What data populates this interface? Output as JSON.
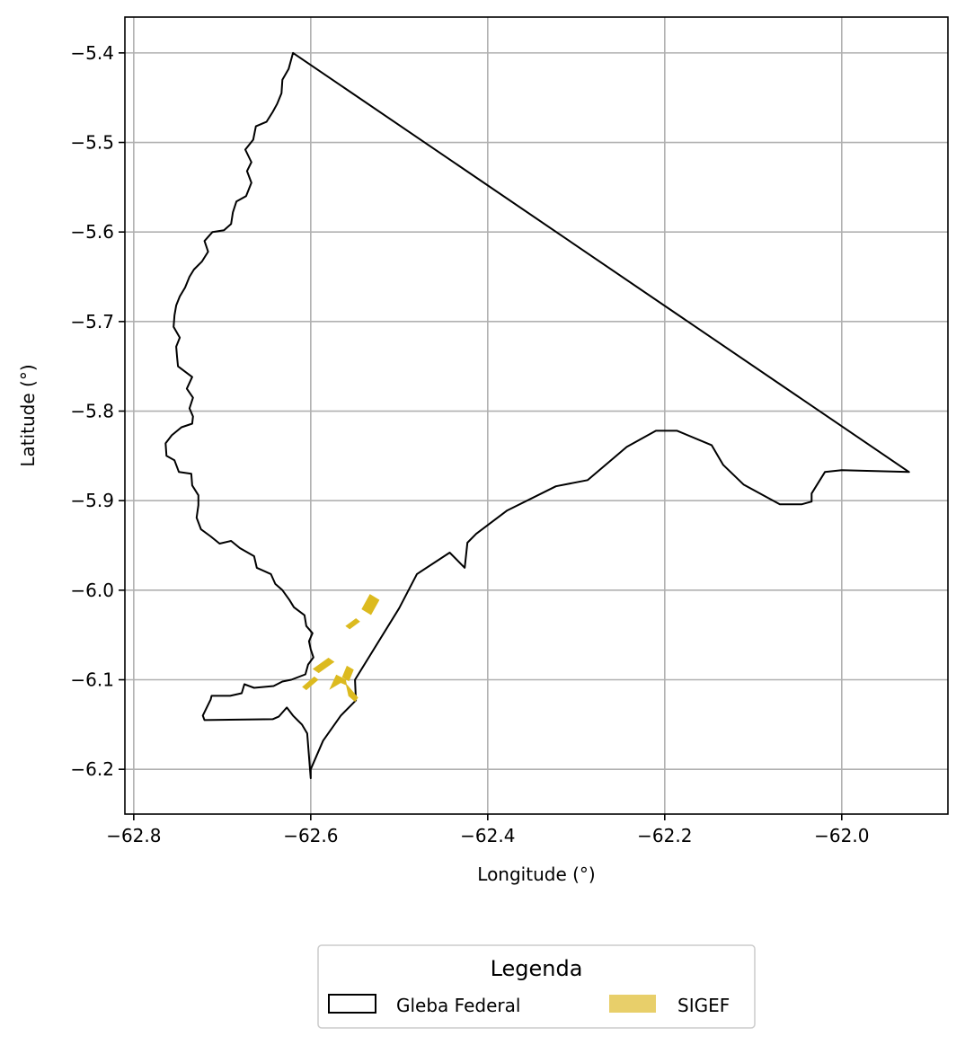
{
  "chart_data": {
    "type": "map",
    "xlabel": "Longitude (°)",
    "ylabel": "Latitude (°)",
    "xlim": [
      -62.81,
      -61.88
    ],
    "ylim": [
      -6.25,
      -5.36
    ],
    "xticks": [
      -62.8,
      -62.6,
      -62.4,
      -62.2,
      -62.0
    ],
    "xtick_labels": [
      "−62.8",
      "−62.6",
      "−62.4",
      "−62.2",
      "−62.0"
    ],
    "yticks": [
      -5.4,
      -5.5,
      -5.6,
      -5.7,
      -5.8,
      -5.9,
      -6.0,
      -6.1,
      -6.2
    ],
    "ytick_labels": [
      "−5.4",
      "−5.5",
      "−5.6",
      "−5.7",
      "−5.8",
      "−5.9",
      "−6.0",
      "−6.1",
      "−6.2"
    ],
    "grid": true,
    "legend": {
      "title": "Legenda",
      "placement": "bottom-center",
      "entries": [
        {
          "label": "Gleba Federal",
          "style": "outline",
          "color": "#000000"
        },
        {
          "label": "SIGEF",
          "style": "fill",
          "color": "#e8cf6a"
        }
      ]
    },
    "series": [
      {
        "name": "Gleba Federal",
        "kind": "polygon-outline",
        "color": "#000000",
        "coordinates": [
          [
            -62.62,
            -5.4
          ],
          [
            -61.924,
            -5.868
          ],
          [
            -62.0,
            -5.866
          ],
          [
            -62.019,
            -5.868
          ],
          [
            -62.034,
            -5.892
          ],
          [
            -62.034,
            -5.901
          ],
          [
            -62.045,
            -5.904
          ],
          [
            -62.07,
            -5.904
          ],
          [
            -62.111,
            -5.882
          ],
          [
            -62.134,
            -5.86
          ],
          [
            -62.147,
            -5.838
          ],
          [
            -62.186,
            -5.822
          ],
          [
            -62.21,
            -5.822
          ],
          [
            -62.243,
            -5.84
          ],
          [
            -62.287,
            -5.877
          ],
          [
            -62.323,
            -5.884
          ],
          [
            -62.378,
            -5.911
          ],
          [
            -62.413,
            -5.937
          ],
          [
            -62.423,
            -5.947
          ],
          [
            -62.426,
            -5.975
          ],
          [
            -62.443,
            -5.958
          ],
          [
            -62.48,
            -5.982
          ],
          [
            -62.5,
            -6.02
          ],
          [
            -62.55,
            -6.1
          ],
          [
            -62.549,
            -6.123
          ],
          [
            -62.566,
            -6.14
          ],
          [
            -62.586,
            -6.168
          ],
          [
            -62.6,
            -6.2
          ],
          [
            -62.6,
            -6.21
          ],
          [
            -62.604,
            -6.16
          ],
          [
            -62.61,
            -6.15
          ],
          [
            -62.614,
            -6.146
          ],
          [
            -62.62,
            -6.14
          ],
          [
            -62.627,
            -6.131
          ],
          [
            -62.636,
            -6.141
          ],
          [
            -62.643,
            -6.144
          ],
          [
            -62.72,
            -6.145
          ],
          [
            -62.722,
            -6.14
          ],
          [
            -62.713,
            -6.122
          ],
          [
            -62.712,
            -6.118
          ],
          [
            -62.691,
            -6.118
          ],
          [
            -62.678,
            -6.115
          ],
          [
            -62.675,
            -6.105
          ],
          [
            -62.664,
            -6.109
          ],
          [
            -62.642,
            -6.107
          ],
          [
            -62.632,
            -6.102
          ],
          [
            -62.622,
            -6.1
          ],
          [
            -62.606,
            -6.094
          ],
          [
            -62.603,
            -6.083
          ],
          [
            -62.597,
            -6.075
          ],
          [
            -62.6,
            -6.066
          ],
          [
            -62.602,
            -6.057
          ],
          [
            -62.598,
            -6.048
          ],
          [
            -62.605,
            -6.04
          ],
          [
            -62.607,
            -6.028
          ],
          [
            -62.619,
            -6.019
          ],
          [
            -62.624,
            -6.011
          ],
          [
            -62.632,
            -6.0
          ],
          [
            -62.64,
            -5.993
          ],
          [
            -62.645,
            -5.982
          ],
          [
            -62.661,
            -5.975
          ],
          [
            -62.664,
            -5.962
          ],
          [
            -62.68,
            -5.953
          ],
          [
            -62.69,
            -5.945
          ],
          [
            -62.703,
            -5.948
          ],
          [
            -62.713,
            -5.94
          ],
          [
            -62.724,
            -5.932
          ],
          [
            -62.729,
            -5.919
          ],
          [
            -62.727,
            -5.905
          ],
          [
            -62.727,
            -5.894
          ],
          [
            -62.734,
            -5.883
          ],
          [
            -62.735,
            -5.87
          ],
          [
            -62.749,
            -5.868
          ],
          [
            -62.754,
            -5.855
          ],
          [
            -62.763,
            -5.85
          ],
          [
            -62.764,
            -5.836
          ],
          [
            -62.757,
            -5.827
          ],
          [
            -62.746,
            -5.818
          ],
          [
            -62.734,
            -5.814
          ],
          [
            -62.733,
            -5.806
          ],
          [
            -62.737,
            -5.797
          ],
          [
            -62.733,
            -5.785
          ],
          [
            -62.74,
            -5.775
          ],
          [
            -62.734,
            -5.762
          ],
          [
            -62.75,
            -5.75
          ],
          [
            -62.751,
            -5.74
          ],
          [
            -62.752,
            -5.728
          ],
          [
            -62.748,
            -5.718
          ],
          [
            -62.755,
            -5.706
          ],
          [
            -62.754,
            -5.693
          ],
          [
            -62.752,
            -5.682
          ],
          [
            -62.748,
            -5.672
          ],
          [
            -62.742,
            -5.662
          ],
          [
            -62.737,
            -5.65
          ],
          [
            -62.732,
            -5.642
          ],
          [
            -62.723,
            -5.633
          ],
          [
            -62.716,
            -5.622
          ],
          [
            -62.72,
            -5.61
          ],
          [
            -62.711,
            -5.6
          ],
          [
            -62.698,
            -5.598
          ],
          [
            -62.69,
            -5.591
          ],
          [
            -62.688,
            -5.578
          ],
          [
            -62.684,
            -5.566
          ],
          [
            -62.673,
            -5.56
          ],
          [
            -62.667,
            -5.545
          ],
          [
            -62.672,
            -5.532
          ],
          [
            -62.667,
            -5.522
          ],
          [
            -62.674,
            -5.508
          ],
          [
            -62.665,
            -5.497
          ],
          [
            -62.662,
            -5.482
          ],
          [
            -62.65,
            -5.477
          ],
          [
            -62.643,
            -5.466
          ],
          [
            -62.638,
            -5.457
          ],
          [
            -62.633,
            -5.445
          ],
          [
            -62.632,
            -5.43
          ],
          [
            -62.625,
            -5.418
          ],
          [
            -62.62,
            -5.4
          ]
        ]
      },
      {
        "name": "SIGEF",
        "kind": "polygon-fill",
        "color": "#dcba1f",
        "polygons": [
          [
            [
              -62.533,
              -6.005
            ],
            [
              -62.523,
              -6.011
            ],
            [
              -62.532,
              -6.027
            ],
            [
              -62.542,
              -6.021
            ]
          ],
          [
            [
              -62.549,
              -6.032
            ],
            [
              -62.545,
              -6.035
            ],
            [
              -62.556,
              -6.043
            ],
            [
              -62.56,
              -6.04
            ]
          ],
          [
            [
              -62.58,
              -6.076
            ],
            [
              -62.574,
              -6.08
            ],
            [
              -62.591,
              -6.092
            ],
            [
              -62.597,
              -6.088
            ]
          ],
          [
            [
              -62.559,
              -6.085
            ],
            [
              -62.552,
              -6.089
            ],
            [
              -62.557,
              -6.101
            ],
            [
              -62.564,
              -6.097
            ]
          ],
          [
            [
              -62.571,
              -6.095
            ],
            [
              -62.561,
              -6.1
            ],
            [
              -62.557,
              -6.118
            ],
            [
              -62.55,
              -6.124
            ],
            [
              -62.547,
              -6.12
            ],
            [
              -62.559,
              -6.106
            ],
            [
              -62.566,
              -6.103
            ],
            [
              -62.578,
              -6.11
            ]
          ],
          [
            [
              -62.596,
              -6.097
            ],
            [
              -62.592,
              -6.1
            ],
            [
              -62.605,
              -6.111
            ],
            [
              -62.609,
              -6.108
            ]
          ]
        ]
      }
    ]
  }
}
